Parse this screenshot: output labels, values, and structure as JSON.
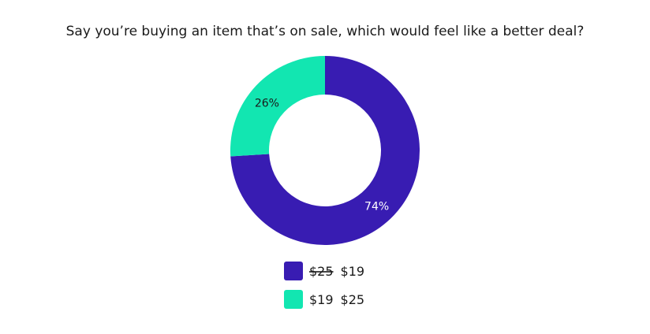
{
  "chart_data": {
    "type": "pie",
    "title": "Say you’re buying an item that’s on sale, which would feel like a better deal?",
    "categories": [
      {
        "parts": [
          {
            "text": "$25",
            "strikethrough": true
          },
          {
            "text": "$19"
          }
        ]
      },
      {
        "parts": [
          {
            "text": "$19"
          },
          {
            "text": "$25"
          }
        ]
      }
    ],
    "values": [
      74,
      26
    ],
    "value_labels": [
      "74%",
      "26%"
    ],
    "colors": [
      "#381cb2",
      "#12e6b1"
    ],
    "value_label_colors": [
      "#ffffff",
      "#1a1a1a"
    ]
  }
}
